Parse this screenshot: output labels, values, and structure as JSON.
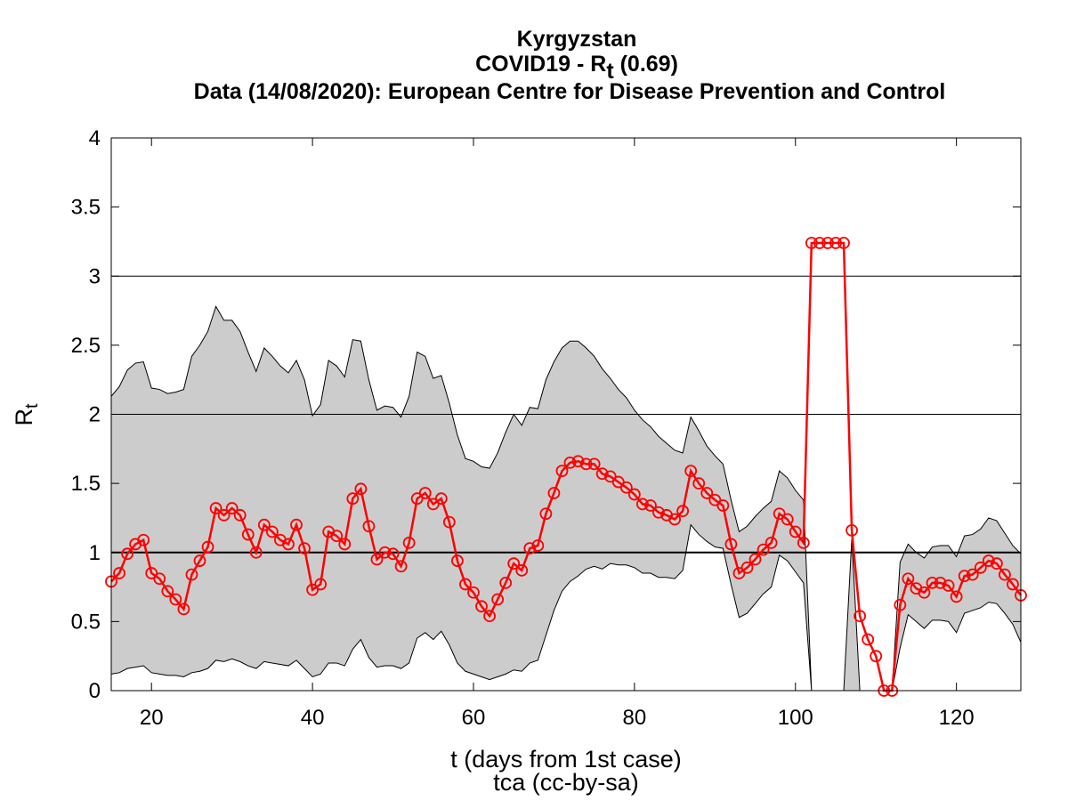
{
  "chart_data": {
    "type": "line",
    "title": [
      "Kyrgyzstan",
      {
        "text": "COVID19 - R",
        "sub": "t",
        "after": " (0.69)"
      },
      "Data (14/08/2020): European Centre for Disease Prevention and Control"
    ],
    "xlabel": "t (days from 1st case)",
    "footer": "tca (cc-by-sa)",
    "ylabel": {
      "text": "R",
      "sub": "t"
    },
    "xlim": [
      15,
      128
    ],
    "ylim": [
      0,
      4
    ],
    "xticks": [
      20,
      40,
      60,
      80,
      100,
      120
    ],
    "yticks": [
      0,
      0.5,
      1,
      1.5,
      2,
      2.5,
      3,
      3.5,
      4
    ],
    "hlines": [
      1,
      2,
      3
    ],
    "color": "#ff0000",
    "band_color": "#cccccc",
    "x": [
      15,
      16,
      17,
      18,
      19,
      20,
      21,
      22,
      23,
      24,
      25,
      26,
      27,
      28,
      29,
      30,
      31,
      32,
      33,
      34,
      35,
      36,
      37,
      38,
      39,
      40,
      41,
      42,
      43,
      44,
      45,
      46,
      47,
      48,
      49,
      50,
      51,
      52,
      53,
      54,
      55,
      56,
      57,
      58,
      59,
      60,
      61,
      62,
      63,
      64,
      65,
      66,
      67,
      68,
      69,
      70,
      71,
      72,
      73,
      74,
      75,
      76,
      77,
      78,
      79,
      80,
      81,
      82,
      83,
      84,
      85,
      86,
      87,
      88,
      89,
      90,
      91,
      92,
      93,
      94,
      95,
      96,
      97,
      98,
      99,
      100,
      101,
      102,
      103,
      104,
      105,
      106,
      107,
      108,
      109,
      110,
      111,
      112,
      113,
      114,
      115,
      116,
      117,
      118,
      119,
      120,
      121,
      122,
      123,
      124,
      125,
      126,
      127,
      128
    ],
    "values": [
      0.79,
      0.85,
      0.99,
      1.06,
      1.09,
      0.85,
      0.81,
      0.72,
      0.66,
      0.59,
      0.84,
      0.94,
      1.04,
      1.32,
      1.27,
      1.32,
      1.27,
      1.13,
      1.0,
      1.2,
      1.15,
      1.09,
      1.06,
      1.2,
      1.03,
      0.73,
      0.77,
      1.15,
      1.12,
      1.06,
      1.39,
      1.46,
      1.19,
      0.95,
      1.0,
      0.99,
      0.9,
      1.07,
      1.39,
      1.43,
      1.35,
      1.39,
      1.22,
      0.94,
      0.77,
      0.71,
      0.61,
      0.54,
      0.66,
      0.78,
      0.92,
      0.87,
      1.03,
      1.05,
      1.28,
      1.43,
      1.59,
      1.65,
      1.66,
      1.64,
      1.64,
      1.57,
      1.55,
      1.51,
      1.47,
      1.42,
      1.35,
      1.34,
      1.29,
      1.27,
      1.24,
      1.3,
      1.59,
      1.5,
      1.43,
      1.38,
      1.34,
      1.06,
      0.85,
      0.89,
      0.95,
      1.02,
      1.07,
      1.28,
      1.24,
      1.15,
      1.07,
      3.24,
      3.24,
      3.24,
      3.24,
      3.24,
      1.16,
      0.54,
      0.37,
      0.25,
      0,
      0,
      0.62,
      0.81,
      0.74,
      0.71,
      0.78,
      0.78,
      0.76,
      0.68,
      0.83,
      0.84,
      0.89,
      0.94,
      0.92,
      0.84,
      0.77,
      0.69
    ],
    "upper": [
      2.13,
      2.2,
      2.32,
      2.37,
      2.38,
      2.19,
      2.18,
      2.15,
      2.16,
      2.18,
      2.42,
      2.5,
      2.6,
      2.78,
      2.68,
      2.68,
      2.6,
      2.45,
      2.31,
      2.48,
      2.42,
      2.35,
      2.3,
      2.39,
      2.25,
      1.99,
      2.07,
      2.39,
      2.35,
      2.27,
      2.54,
      2.53,
      2.25,
      2.03,
      2.06,
      2.05,
      1.98,
      2.13,
      2.45,
      2.42,
      2.26,
      2.28,
      2.08,
      1.85,
      1.68,
      1.66,
      1.62,
      1.61,
      1.72,
      1.87,
      2.0,
      1.92,
      2.05,
      2.04,
      2.25,
      2.38,
      2.48,
      2.53,
      2.53,
      2.48,
      2.42,
      2.33,
      2.26,
      2.18,
      2.12,
      2.03,
      1.96,
      1.91,
      1.84,
      1.79,
      1.74,
      1.72,
      1.98,
      1.88,
      1.77,
      1.7,
      1.64,
      1.38,
      1.15,
      1.19,
      1.26,
      1.32,
      1.37,
      1.59,
      1.54,
      1.45,
      1.38,
      0,
      0,
      0,
      0,
      0,
      1.1,
      0,
      0,
      0,
      0,
      0,
      0.93,
      1.06,
      1.0,
      0.96,
      1.04,
      1.05,
      1.05,
      0.97,
      1.12,
      1.13,
      1.17,
      1.25,
      1.23,
      1.14,
      1.05,
      0.99
    ],
    "lower": [
      0.12,
      0.13,
      0.16,
      0.17,
      0.18,
      0.13,
      0.12,
      0.11,
      0.11,
      0.1,
      0.13,
      0.14,
      0.16,
      0.22,
      0.21,
      0.23,
      0.21,
      0.18,
      0.16,
      0.21,
      0.2,
      0.19,
      0.18,
      0.22,
      0.16,
      0.1,
      0.12,
      0.2,
      0.2,
      0.18,
      0.3,
      0.37,
      0.24,
      0.17,
      0.18,
      0.18,
      0.16,
      0.2,
      0.38,
      0.42,
      0.37,
      0.43,
      0.33,
      0.2,
      0.14,
      0.12,
      0.1,
      0.08,
      0.1,
      0.12,
      0.15,
      0.14,
      0.2,
      0.22,
      0.4,
      0.58,
      0.72,
      0.79,
      0.83,
      0.88,
      0.9,
      0.88,
      0.92,
      0.91,
      0.91,
      0.89,
      0.85,
      0.85,
      0.82,
      0.82,
      0.81,
      0.87,
      1.2,
      1.13,
      1.08,
      1.04,
      1.03,
      0.77,
      0.53,
      0.56,
      0.63,
      0.7,
      0.75,
      0.98,
      0.94,
      0.86,
      0.78,
      0,
      0,
      0,
      0,
      0,
      0,
      0,
      0,
      0,
      0,
      0,
      0.31,
      0.55,
      0.5,
      0.45,
      0.51,
      0.51,
      0.5,
      0.42,
      0.56,
      0.58,
      0.6,
      0.64,
      0.63,
      0.56,
      0.48,
      0.35
    ]
  }
}
